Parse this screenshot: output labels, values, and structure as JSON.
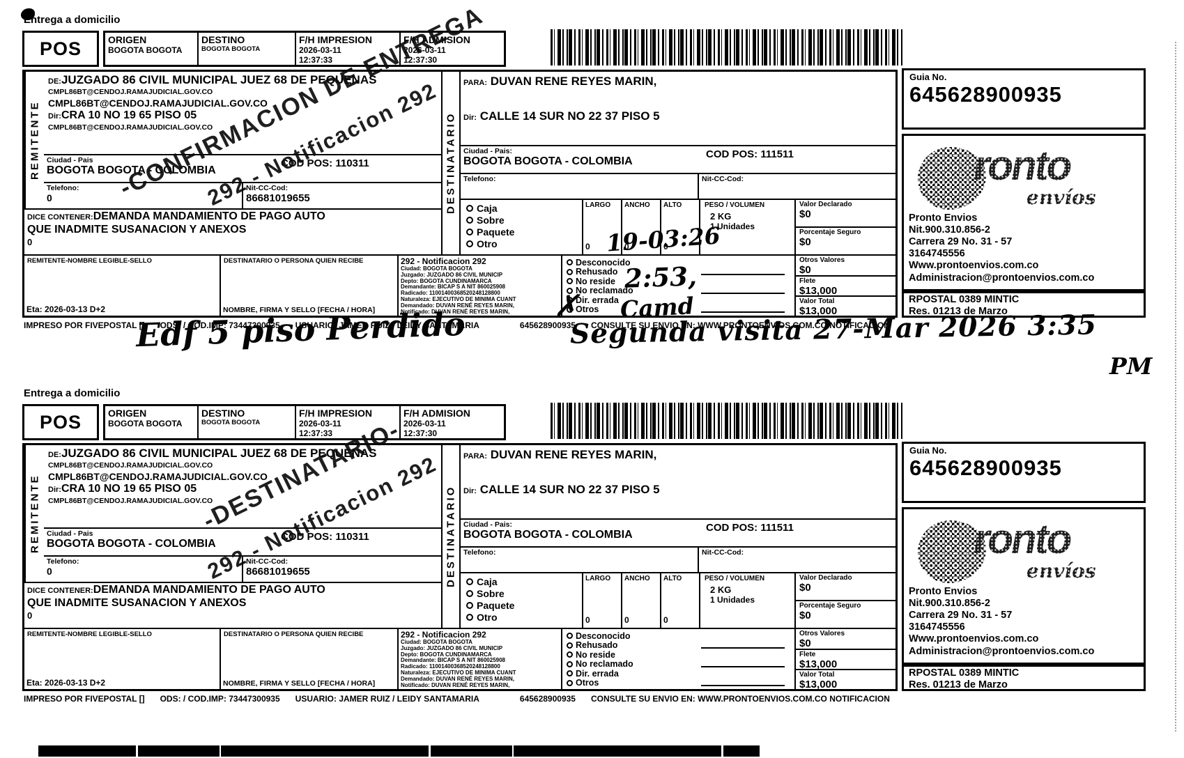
{
  "annotations": {
    "left_note": "Edf 5 piso Perdido",
    "right_note": "Segunda visita 27-Mar 2026 3:35",
    "right_note_pm": "PM"
  },
  "labels": [
    {
      "entrega": "Entrega a domicilio",
      "pos": "POS",
      "header": {
        "origen_label": "ORIGEN",
        "origen": "BOGOTA BOGOTA",
        "destino_label": "DESTINO",
        "destino": "BOGOTA BOGOTA",
        "impresion_label": "F/H IMPRESION",
        "impresion_date": "2026-03-11",
        "impresion_time": "12:37:33",
        "admision_label": "F/H ADMISION",
        "admision_date": "2026-03-11",
        "admision_time": "12:37:30"
      },
      "remitente": {
        "side_label": "REMITENTE",
        "de_label": "DE:",
        "de": "JUZGADO 86 CIVIL MUNICIPAL JUEZ 68 DE PEQUENAS",
        "email1": "CMPL86BT@CENDOJ.RAMAJUDICIAL.GOV.CO",
        "email2": "CMPL86BT@CENDOJ.RAMAJUDICIAL.GOV.CO",
        "dir_label": "Dir:",
        "dir": "CRA 10 NO 19 65 PISO 05",
        "email3": "CMPL86BT@CENDOJ.RAMAJUDICIAL.GOV.CO",
        "ciudad_label": "Ciudad - Pais",
        "ciudad": "BOGOTA BOGOTA - COLOMBIA",
        "codpos": "COD POS: 110311",
        "telefono_label": "Telefono:",
        "telefono": "0",
        "nit_label": "Nit-CC-Cod:",
        "nit": "86681019655"
      },
      "contenido": {
        "dice_label": "DICE CONTENER:",
        "line1": "DEMANDA MANDAMIENTO DE PAGO AUTO",
        "line2": "QUE INADMITE SUSANACION Y ANEXOS",
        "line3": "0"
      },
      "destinatario": {
        "side_label": "DESTINATARIO",
        "para_label": "PARA:",
        "para": "DUVAN RENE REYES MARIN,",
        "dir_label": "Dir:",
        "dir": "CALLE 14 SUR NO 22 37 PISO 5",
        "ciudad_label": "Ciudad - Pais:",
        "ciudad": "BOGOTA BOGOTA - COLOMBIA",
        "codpos": "COD POS: 111511",
        "telefono_label": "Telefono:",
        "telefono": "",
        "nit_label": "Nit-CC-Cod:",
        "nit": ""
      },
      "paquete": {
        "tipos": [
          "Caja",
          "Sobre",
          "Paquete",
          "Otro"
        ],
        "largo_label": "LARGO",
        "largo": "0",
        "ancho_label": "ANCHO",
        "ancho": "0",
        "alto_label": "ALTO",
        "alto": "0",
        "peso_label": "PESO / VOLUMEN",
        "peso": "2 KG",
        "unidades": "1 Unidades"
      },
      "valores": {
        "declarado_label": "Valor Declarado",
        "declarado": "$0",
        "seguro_label": "Porcentaje Seguro",
        "seguro": "$0",
        "otros_label": "Otros Valores",
        "otros": "$0",
        "flete_label": "Flete",
        "flete": "$13,000",
        "total_label": "Valor Total",
        "total": "$13,000"
      },
      "firmas": {
        "remitente_box_label": "REMITENTE-NOMBRE LEGIBLE-SELLO",
        "eta": "Eta: 2026-03-13 D+2",
        "destinatario_box_label": "DESTINATARIO O PERSONA QUIEN RECIBE",
        "firma_label": "NOMBRE, FIRMA Y SELLO   [FECHA / HORA]"
      },
      "notificacion": {
        "titulo": "292 - Notificacion 292",
        "lines": [
          "Ciudad: BOGOTA BOGOTA",
          "Juzgado: JUZGADO 86 CIVIL MUNICIP",
          "Depto: BOGOTA CUNDINAMARCA",
          "Demandante: BICAP S A NIT 860025908",
          "Radicado: 11001400368520248128800",
          "Naturaleza: EJECUTIVO DE MINIMA CUANT",
          "Demandado: DUVAN RENÉ REYES MARIN,",
          "Notificado: DUVAN RENÉ REYES MARIN,"
        ]
      },
      "estado": {
        "opciones": [
          "Desconocido",
          "Rehusado",
          "No reside",
          "No reclamado",
          "Dir. errada",
          "Otros"
        ],
        "hw_line1": "19-03:26",
        "hw_line2": "2:53,",
        "hw_line3": "Camd",
        "otros_mark": "✗"
      },
      "guia": {
        "label": "Guia No.",
        "numero": "645628900935"
      },
      "pronto": {
        "logo_word": "ronto",
        "logo_sub": "envíos",
        "lines": [
          "Pronto Envios",
          "Nit.900.310.856-2",
          "Carrera 29 No. 31 - 57",
          "3164745556",
          "Www.prontoenvios.com.co",
          "Administracion@prontoenvios.com.co"
        ],
        "rpostal": "RPOSTAL 0389 MINTIC",
        "res": "Res. 01213 de Marzo"
      },
      "footer": {
        "f1": "IMPRESO POR FIVEPOSTAL []",
        "f2": "ODS: / COD.IMP: 73447300935",
        "f3": "USUARIO: JAMER RUIZ / LEIDY SANTAMARIA",
        "f4": "645628900935",
        "f5": "CONSULTE SU ENVIO EN: WWW.PRONTOENVIOS.COM.CO NOTIFICACION"
      },
      "stamp": {
        "line1": "-CONFIRMACION DE ENTREGA",
        "line2": "292 - Notificacion 292"
      }
    },
    {
      "entrega": "Entrega a domicilio",
      "pos": "POS",
      "header": {
        "origen_label": "ORIGEN",
        "origen": "BOGOTA BOGOTA",
        "destino_label": "DESTINO",
        "destino": "BOGOTA BOGOTA",
        "impresion_label": "F/H IMPRESION",
        "impresion_date": "2026-03-11",
        "impresion_time": "12:37:33",
        "admision_label": "F/H ADMISION",
        "admision_date": "2026-03-11",
        "admision_time": "12:37:30"
      },
      "remitente": {
        "side_label": "REMITENTE",
        "de_label": "DE:",
        "de": "JUZGADO 86 CIVIL MUNICIPAL JUEZ 68 DE PEQUENAS",
        "email1": "CMPL86BT@CENDOJ.RAMAJUDICIAL.GOV.CO",
        "email2": "CMPL86BT@CENDOJ.RAMAJUDICIAL.GOV.CO",
        "dir_label": "Dir:",
        "dir": "CRA 10 NO 19 65 PISO 05",
        "email3": "CMPL86BT@CENDOJ.RAMAJUDICIAL.GOV.CO",
        "ciudad_label": "Ciudad - Pais",
        "ciudad": "BOGOTA BOGOTA - COLOMBIA",
        "codpos": "COD POS: 110311",
        "telefono_label": "Telefono:",
        "telefono": "0",
        "nit_label": "Nit-CC-Cod:",
        "nit": "86681019655"
      },
      "contenido": {
        "dice_label": "DICE CONTENER:",
        "line1": "DEMANDA MANDAMIENTO DE PAGO AUTO",
        "line2": "QUE INADMITE SUSANACION Y ANEXOS",
        "line3": "0"
      },
      "destinatario": {
        "side_label": "DESTINATARIO",
        "para_label": "PARA:",
        "para": "DUVAN RENE REYES MARIN,",
        "dir_label": "Dir:",
        "dir": "CALLE 14 SUR NO 22 37 PISO 5",
        "ciudad_label": "Ciudad - Pais:",
        "ciudad": "BOGOTA BOGOTA - COLOMBIA",
        "codpos": "COD POS: 111511",
        "telefono_label": "Telefono:",
        "telefono": "",
        "nit_label": "Nit-CC-Cod:",
        "nit": ""
      },
      "paquete": {
        "tipos": [
          "Caja",
          "Sobre",
          "Paquete",
          "Otro"
        ],
        "largo_label": "LARGO",
        "largo": "0",
        "ancho_label": "ANCHO",
        "ancho": "0",
        "alto_label": "ALTO",
        "alto": "0",
        "peso_label": "PESO / VOLUMEN",
        "peso": "2 KG",
        "unidades": "1 Unidades"
      },
      "valores": {
        "declarado_label": "Valor Declarado",
        "declarado": "$0",
        "seguro_label": "Porcentaje Seguro",
        "seguro": "$0",
        "otros_label": "Otros Valores",
        "otros": "$0",
        "flete_label": "Flete",
        "flete": "$13,000",
        "total_label": "Valor Total",
        "total": "$13,000"
      },
      "firmas": {
        "remitente_box_label": "REMITENTE-NOMBRE LEGIBLE-SELLO",
        "eta": "Eta: 2026-03-13 D+2",
        "destinatario_box_label": "DESTINATARIO O PERSONA QUIEN RECIBE",
        "firma_label": "NOMBRE, FIRMA Y SELLO   [FECHA / HORA]"
      },
      "notificacion": {
        "titulo": "292 - Notificacion 292",
        "lines": [
          "Ciudad: BOGOTA BOGOTA",
          "Juzgado: JUZGADO 86 CIVIL MUNICIP",
          "Depto: BOGOTA CUNDINAMARCA",
          "Demandante: BICAP S A NIT 860025908",
          "Radicado: 11001400368520248128800",
          "Naturaleza: EJECUTIVO DE MINIMA CUANT",
          "Demandado: DUVAN RENÉ REYES MARIN,",
          "Notificado: DUVAN RENÉ REYES MARIN,"
        ]
      },
      "estado": {
        "opciones": [
          "Desconocido",
          "Rehusado",
          "No reside",
          "No reclamado",
          "Dir. errada",
          "Otros"
        ],
        "hw_line1": "",
        "hw_line2": "",
        "hw_line3": "",
        "otros_mark": ""
      },
      "guia": {
        "label": "Guia No.",
        "numero": "645628900935"
      },
      "pronto": {
        "logo_word": "ronto",
        "logo_sub": "envíos",
        "lines": [
          "Pronto Envios",
          "Nit.900.310.856-2",
          "Carrera 29 No. 31 - 57",
          "3164745556",
          "Www.prontoenvios.com.co",
          "Administracion@prontoenvios.com.co"
        ],
        "rpostal": "RPOSTAL 0389 MINTIC",
        "res": "Res. 01213 de Marzo"
      },
      "footer": {
        "f1": "IMPRESO POR FIVEPOSTAL []",
        "f2": "ODS: / COD.IMP: 73447300935",
        "f3": "USUARIO: JAMER RUIZ / LEIDY SANTAMARIA",
        "f4": "645628900935",
        "f5": "CONSULTE SU ENVIO EN: WWW.PRONTOENVIOS.COM.CO NOTIFICACION"
      },
      "stamp": {
        "line1": "-DESTINATARIO-",
        "line2": "292 - Notificacion 292"
      }
    }
  ]
}
